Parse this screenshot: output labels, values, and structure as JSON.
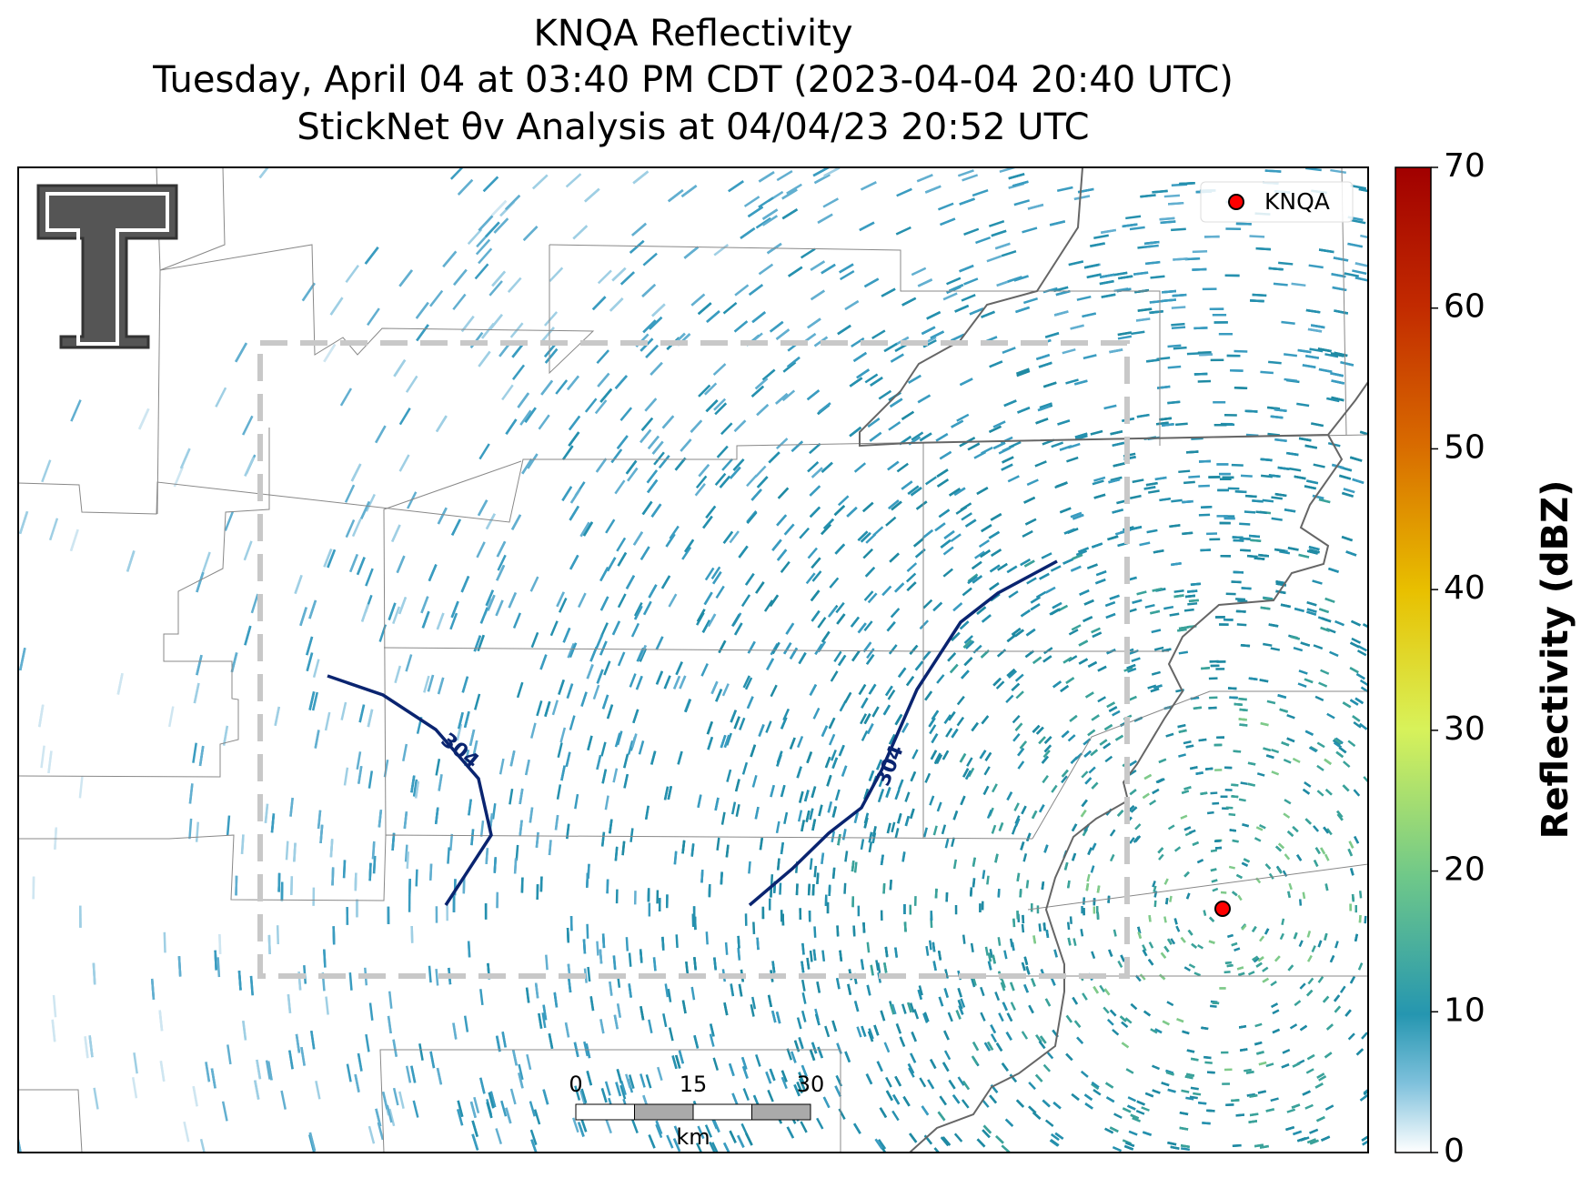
{
  "title": [
    "KNQA Reflectivity",
    "Tuesday, April 04 at 03:40 PM CDT (2023-04-04 20:40 UTC)",
    "StickNet θv Analysis at 04/04/23 20:52 UTC"
  ],
  "legend": {
    "label": "KNQA",
    "color": "#ff0000"
  },
  "contours": [
    {
      "label": "304",
      "color": "#0a2470"
    },
    {
      "label": "304",
      "color": "#0a2470"
    }
  ],
  "colorbar": {
    "label": "Reflectivity (dBZ)",
    "lim": [
      0,
      70
    ],
    "ticks": [
      0,
      10,
      20,
      30,
      40,
      50,
      60,
      70
    ]
  },
  "scalebar": {
    "ticks": [
      0,
      15,
      30
    ],
    "unit": "km"
  }
}
